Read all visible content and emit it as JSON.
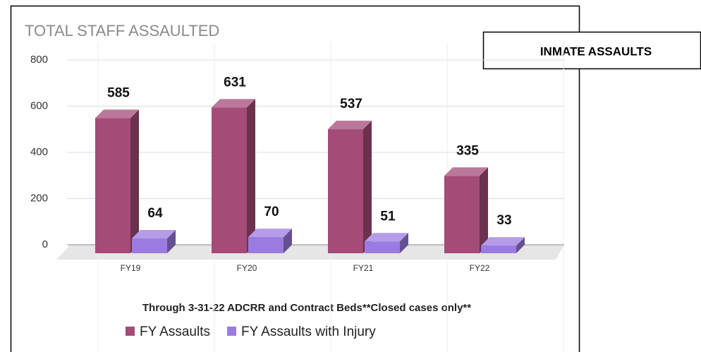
{
  "chart_data": {
    "type": "bar3d",
    "title": "TOTAL STAFF ASSAULTED",
    "subtitle": "Through 3-31-22 ADCRR and Contract Beds**Closed cases only**",
    "categories": [
      "FY19",
      "FY20",
      "FY21",
      "FY22"
    ],
    "series": [
      {
        "name": "FY Assaults",
        "color": "#a44b78",
        "values": [
          585,
          631,
          537,
          335
        ]
      },
      {
        "name": "FY Assaults with Injury",
        "color": "#9b7be0",
        "values": [
          64,
          70,
          51,
          33
        ]
      }
    ],
    "ylim": [
      0,
      800
    ],
    "yticks": [
      0,
      200,
      400,
      600,
      800
    ],
    "grid": true,
    "legend": "bottom"
  },
  "label_box": "INMATE ASSAULTS"
}
